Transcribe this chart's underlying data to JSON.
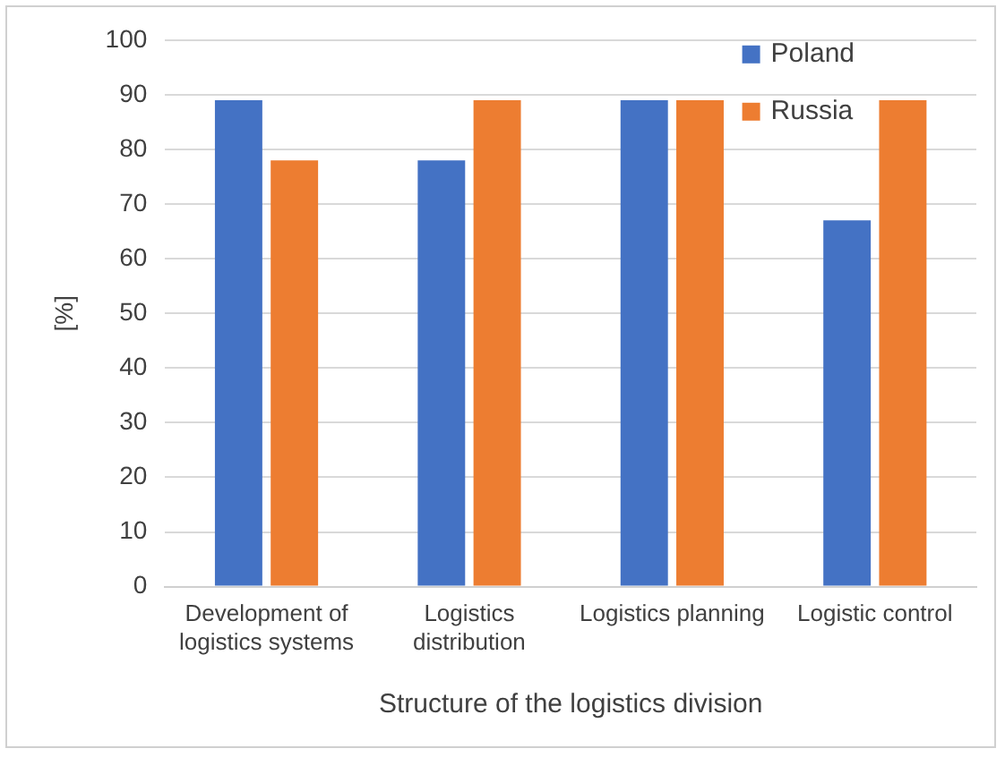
{
  "chart_data": {
    "type": "bar",
    "xlabel": "Structure of the logistics division",
    "ylabel": "[%]",
    "categories": [
      "Development of logistics systems",
      "Logistics distribution",
      "Logistics planning",
      "Logistic control"
    ],
    "series": [
      {
        "name": "Poland",
        "color": "#4472c4",
        "values": [
          89,
          78,
          89,
          67
        ]
      },
      {
        "name": "Russia",
        "color": "#ed7d31",
        "values": [
          78,
          89,
          89,
          89
        ]
      }
    ],
    "ylim": [
      0,
      100
    ],
    "yticks": [
      0,
      10,
      20,
      30,
      40,
      50,
      60,
      70,
      80,
      90,
      100
    ],
    "grid": "y",
    "legend": "top right"
  }
}
